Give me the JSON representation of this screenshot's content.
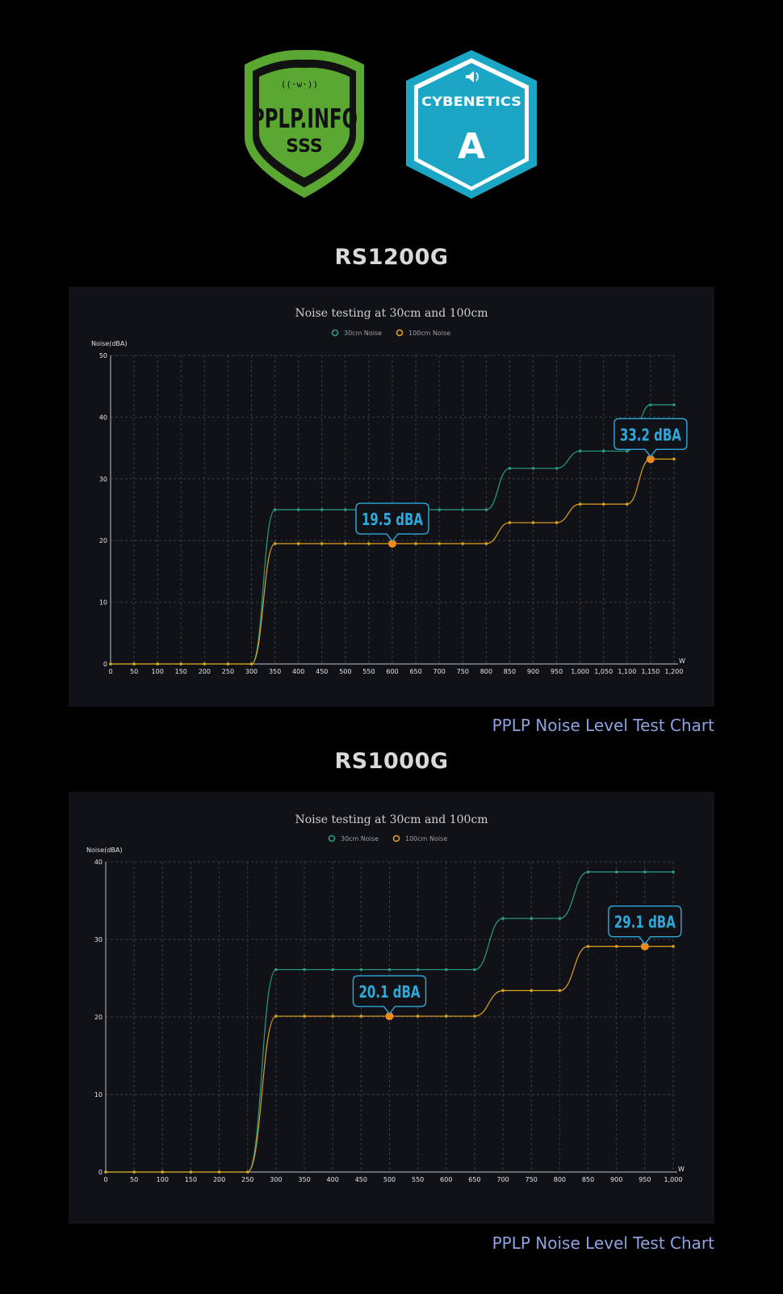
{
  "badges": {
    "pplp": {
      "text": "PPLP.INFO",
      "rating": "SSS",
      "color": "#5aa832"
    },
    "cybenetics": {
      "text": "CYBENETICS",
      "rating": "A",
      "color": "#1aa6c4"
    }
  },
  "caption": "PPLP Noise Level Test Chart",
  "charts": [
    {
      "model": "RS1200G",
      "chart_data": {
        "type": "line",
        "title": "Noise testing at 30cm and 100cm",
        "ylabel": "Noise(dBA)",
        "xlabel": "W",
        "ylim": [
          0,
          50
        ],
        "yticks": [
          0,
          10,
          20,
          30,
          40,
          50
        ],
        "xlim": [
          0,
          1200
        ],
        "xticks": [
          0,
          50,
          100,
          150,
          200,
          250,
          300,
          350,
          400,
          450,
          500,
          550,
          600,
          650,
          700,
          750,
          800,
          850,
          900,
          950,
          1000,
          1050,
          1100,
          1150,
          1200
        ],
        "xtick_labels": [
          "0",
          "50",
          "100",
          "150",
          "200",
          "250",
          "300",
          "350",
          "400",
          "450",
          "500",
          "550",
          "600",
          "650",
          "700",
          "750",
          "800",
          "850",
          "900",
          "950",
          "1,000",
          "1,050",
          "1,100",
          "1,150",
          "1,200"
        ],
        "x": [
          0,
          50,
          100,
          150,
          200,
          250,
          300,
          350,
          400,
          450,
          500,
          550,
          600,
          650,
          700,
          750,
          800,
          850,
          900,
          950,
          1000,
          1050,
          1100,
          1150,
          1200
        ],
        "series": [
          {
            "name": "30cm Noise",
            "color": "#2a9d86",
            "values": [
              0,
              0,
              0,
              0,
              0,
              0,
              0,
              25,
              25,
              25,
              25,
              25,
              25,
              25,
              25,
              25,
              25,
              31.7,
              31.7,
              31.7,
              34.5,
              34.5,
              34.5,
              42,
              42
            ]
          },
          {
            "name": "100cm Noise",
            "color": "#e0a21c",
            "values": [
              0,
              0,
              0,
              0,
              0,
              0,
              0,
              19.5,
              19.5,
              19.5,
              19.5,
              19.5,
              19.5,
              19.5,
              19.5,
              19.5,
              19.5,
              22.9,
              22.9,
              22.9,
              25.9,
              25.9,
              25.9,
              33.2,
              33.2
            ]
          }
        ],
        "annotations": [
          {
            "x": 600,
            "y": 19.5,
            "label": "19.5 dBA"
          },
          {
            "x": 1150,
            "y": 33.2,
            "label": "33.2 dBA"
          }
        ]
      }
    },
    {
      "model": "RS1000G",
      "chart_data": {
        "type": "line",
        "title": "Noise testing at 30cm and 100cm",
        "ylabel": "Noise(dBA)",
        "xlabel": "W",
        "ylim": [
          0,
          40
        ],
        "yticks": [
          0,
          10,
          20,
          30,
          40
        ],
        "xlim": [
          0,
          1000
        ],
        "xticks": [
          0,
          50,
          100,
          150,
          200,
          250,
          300,
          350,
          400,
          450,
          500,
          550,
          600,
          650,
          700,
          750,
          800,
          850,
          900,
          950,
          1000
        ],
        "xtick_labels": [
          "0",
          "50",
          "100",
          "150",
          "200",
          "250",
          "300",
          "350",
          "400",
          "450",
          "500",
          "550",
          "600",
          "650",
          "700",
          "750",
          "800",
          "850",
          "900",
          "950",
          "1,000"
        ],
        "x": [
          0,
          50,
          100,
          150,
          200,
          250,
          300,
          350,
          400,
          450,
          500,
          550,
          600,
          650,
          700,
          750,
          800,
          850,
          900,
          950,
          1000
        ],
        "series": [
          {
            "name": "30cm Noise",
            "color": "#2a9d86",
            "values": [
              0,
              0,
              0,
              0,
              0,
              0,
              26.1,
              26.1,
              26.1,
              26.1,
              26.1,
              26.1,
              26.1,
              26.1,
              32.7,
              32.7,
              32.7,
              38.7,
              38.7,
              38.7,
              38.7
            ]
          },
          {
            "name": "100cm Noise",
            "color": "#e0a21c",
            "values": [
              0,
              0,
              0,
              0,
              0,
              0,
              20.1,
              20.1,
              20.1,
              20.1,
              20.1,
              20.1,
              20.1,
              20.1,
              23.4,
              23.4,
              23.4,
              29.1,
              29.1,
              29.1,
              29.1
            ]
          }
        ],
        "annotations": [
          {
            "x": 500,
            "y": 20.1,
            "label": "20.1 dBA"
          },
          {
            "x": 950,
            "y": 29.1,
            "label": "29.1 dBA"
          }
        ]
      }
    }
  ]
}
